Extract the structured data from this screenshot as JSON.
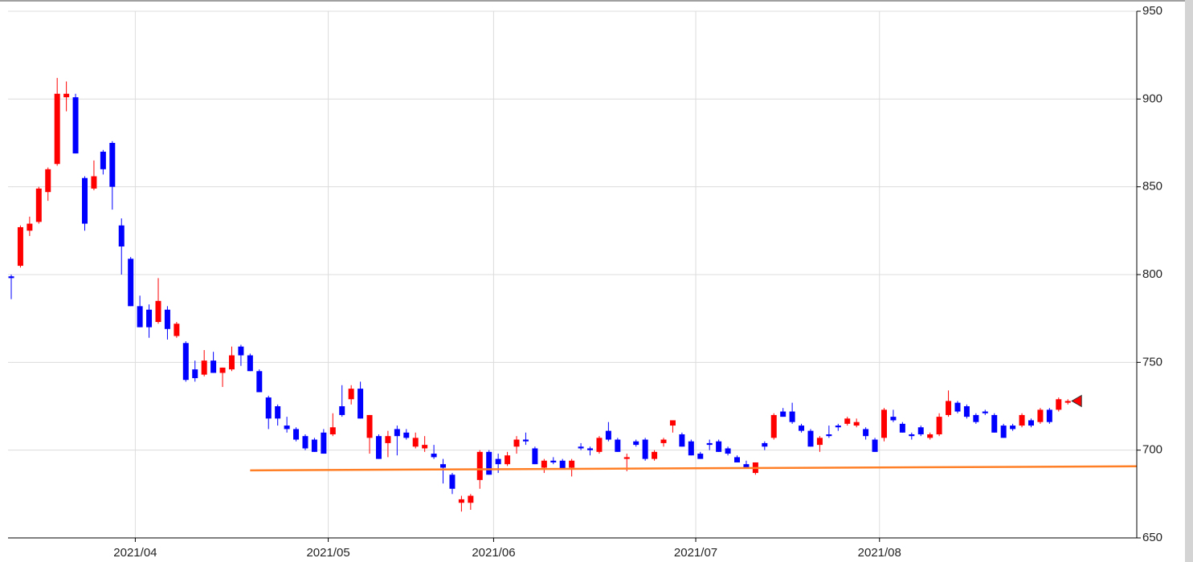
{
  "chart_data": {
    "type": "candlestick",
    "categories": [
      null,
      null,
      null,
      null,
      null,
      null,
      null,
      null,
      null,
      null,
      null,
      null,
      null,
      null,
      "2021/04",
      null,
      null,
      null,
      null,
      null,
      null,
      null,
      null,
      null,
      null,
      null,
      null,
      null,
      null,
      null,
      null,
      null,
      null,
      null,
      null,
      "2021/05",
      null,
      null,
      null,
      null,
      null,
      null,
      null,
      null,
      null,
      null,
      null,
      null,
      null,
      null,
      null,
      null,
      null,
      "2021/06",
      null,
      null,
      null,
      null,
      null,
      null,
      null,
      null,
      null,
      null,
      null,
      null,
      null,
      null,
      null,
      null,
      null,
      null,
      null,
      null,
      null,
      "2021/07",
      null,
      null,
      null,
      null,
      null,
      null,
      null,
      null,
      null,
      null,
      null,
      null,
      null,
      null,
      null,
      null,
      null,
      null,
      null,
      "2021/08",
      null,
      null,
      null,
      null,
      null,
      null,
      null,
      null,
      null,
      null,
      null,
      null,
      null,
      null,
      null,
      null,
      null,
      null,
      null,
      null
    ],
    "open": [
      799,
      805,
      825,
      830,
      847,
      863,
      901,
      901,
      855,
      849,
      870,
      875,
      828,
      809,
      782,
      780,
      773,
      780,
      765,
      761,
      746,
      743,
      751,
      744,
      746,
      759,
      754,
      745,
      730,
      725,
      714,
      712,
      708,
      706,
      710,
      709,
      725,
      729,
      735,
      707,
      708,
      704,
      712,
      710,
      702,
      701,
      698,
      692,
      686,
      670,
      670,
      683,
      699,
      695,
      692,
      702,
      706,
      701,
      690,
      694,
      694,
      690,
      702,
      701,
      699,
      711,
      706,
      695,
      705,
      706,
      695,
      704,
      714,
      709,
      705,
      698,
      704,
      705,
      701,
      696,
      692,
      687,
      704,
      707,
      722,
      722,
      714,
      711,
      703,
      709,
      714,
      715,
      714,
      712,
      706,
      707,
      719,
      715,
      709,
      713,
      707,
      709,
      720,
      727,
      725,
      720,
      722,
      720,
      714,
      714,
      714,
      717,
      716,
      723,
      723,
      727
    ],
    "high": [
      800,
      828,
      833,
      850,
      861,
      912,
      910,
      903,
      856,
      865,
      871,
      876,
      832,
      810,
      788,
      783,
      798,
      782,
      773,
      762,
      751,
      757,
      756,
      747,
      759,
      760,
      755,
      746,
      731,
      726,
      719,
      713,
      709,
      707,
      712,
      721,
      737,
      737,
      739,
      720,
      709,
      711,
      714,
      712,
      710,
      708,
      703,
      695,
      687,
      674,
      675,
      700,
      700,
      698,
      699,
      708,
      710,
      702,
      695,
      696,
      695,
      695,
      704,
      702,
      708,
      716,
      707,
      698,
      706,
      707,
      700,
      707,
      717,
      710,
      706,
      699,
      706,
      706,
      702,
      697,
      694,
      693,
      705,
      721,
      724,
      727,
      715,
      712,
      708,
      714,
      715,
      719,
      718,
      713,
      707,
      724,
      723,
      716,
      710,
      714,
      710,
      721,
      734,
      728,
      726,
      721,
      723,
      721,
      715,
      715,
      721,
      718,
      724,
      724,
      730,
      729
    ],
    "low": [
      786,
      804,
      822,
      829,
      842,
      862,
      893,
      869,
      825,
      848,
      857,
      837,
      800,
      782,
      770,
      764,
      772,
      763,
      764,
      739,
      739,
      742,
      744,
      736,
      745,
      748,
      745,
      733,
      712,
      714,
      710,
      705,
      700,
      699,
      698,
      708,
      719,
      726,
      718,
      698,
      695,
      696,
      697,
      706,
      701,
      699,
      695,
      681,
      675,
      665,
      666,
      678,
      686,
      687,
      691,
      698,
      703,
      692,
      687,
      692,
      689,
      685,
      700,
      697,
      698,
      705,
      699,
      688,
      702,
      694,
      694,
      702,
      710,
      702,
      697,
      695,
      700,
      699,
      697,
      693,
      690,
      686,
      700,
      706,
      719,
      715,
      710,
      702,
      699,
      707,
      711,
      714,
      713,
      706,
      699,
      705,
      716,
      710,
      706,
      708,
      706,
      708,
      719,
      721,
      718,
      715,
      720,
      710,
      707,
      711,
      713,
      713,
      715,
      715,
      722,
      726
    ],
    "close": [
      798,
      827,
      829,
      849,
      860,
      903,
      903,
      869,
      829,
      856,
      860,
      850,
      816,
      782,
      770,
      770,
      785,
      769,
      772,
      740,
      741,
      751,
      744,
      747,
      754,
      754,
      745,
      733,
      718,
      718,
      712,
      706,
      701,
      699,
      698,
      713,
      720,
      735,
      718,
      720,
      695,
      708,
      708,
      707,
      707,
      703,
      696,
      690,
      678,
      672,
      674,
      699,
      686,
      692,
      697,
      706,
      705,
      692,
      694,
      693,
      689,
      694,
      701,
      700,
      707,
      706,
      699,
      696,
      703,
      695,
      699,
      706,
      717,
      702,
      697,
      695,
      703,
      699,
      698,
      693,
      690,
      693,
      702,
      720,
      719,
      716,
      711,
      702,
      707,
      708,
      713,
      718,
      716,
      708,
      699,
      723,
      717,
      710,
      708,
      709,
      709,
      719,
      728,
      722,
      719,
      716,
      721,
      710,
      707,
      712,
      720,
      714,
      723,
      716,
      729,
      728
    ],
    "up_color": "#ff0000",
    "down_color": "#0000ff",
    "lines": [
      {
        "color": "#ff7f27",
        "x": [
          26,
          122.5
        ],
        "values": [
          688.5,
          690.8
        ]
      }
    ],
    "xlim": [
      -0.35,
      122.5
    ],
    "ylim": [
      650,
      950
    ],
    "yticks": [
      650,
      700,
      750,
      800,
      850,
      900,
      950
    ],
    "grid": true
  }
}
